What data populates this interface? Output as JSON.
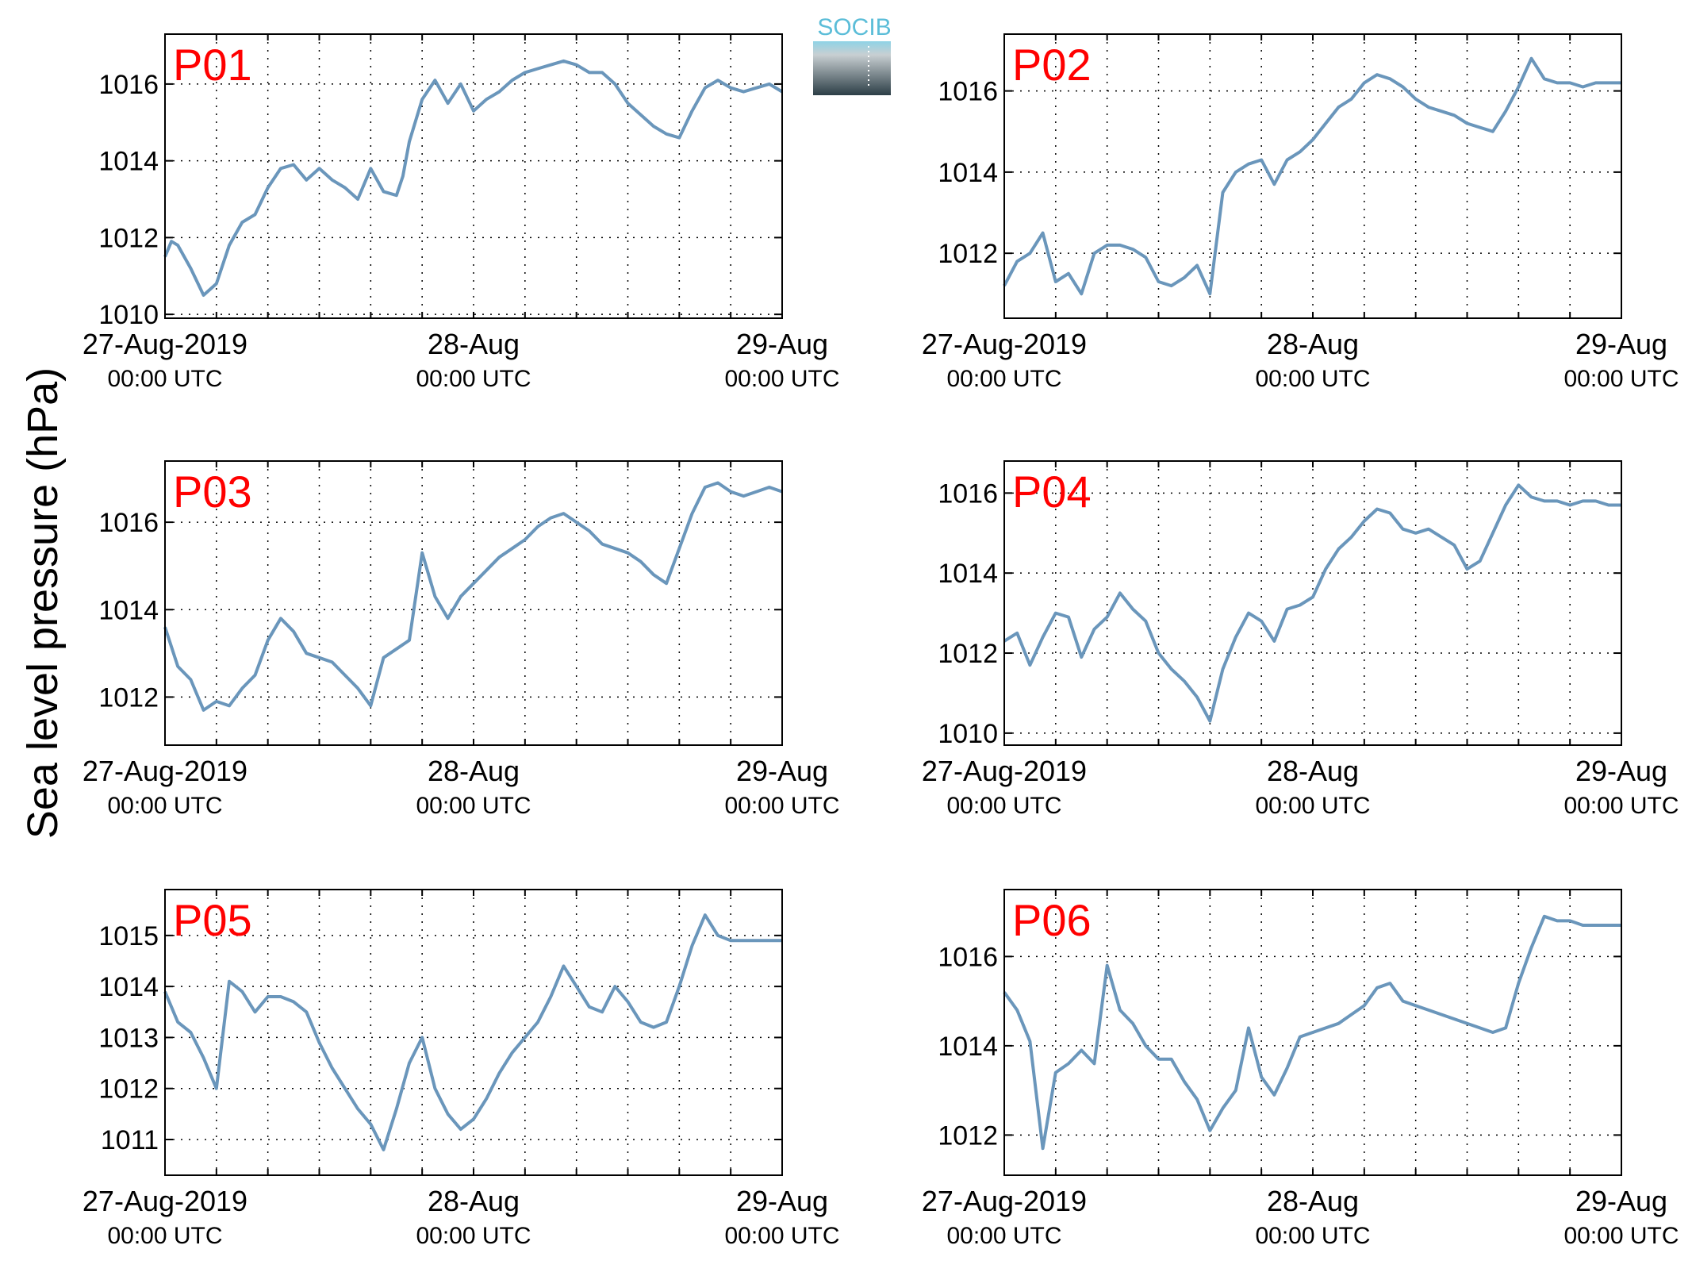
{
  "figure": {
    "ylabel": "Sea level pressure (hPa)",
    "logo_text": "SOCIB"
  },
  "colors": {
    "line": "#6a96bb",
    "label": "#ff0000",
    "logo_top": "#5bbdd8",
    "logo_bottom": "#2c3e46"
  },
  "chart_data": [
    {
      "type": "line",
      "name": "P01",
      "ylim": [
        1009.9,
        1017.3
      ],
      "yticks": [
        1010,
        1012,
        1014,
        1016
      ],
      "xlim": [
        0,
        48
      ],
      "xticks": [
        {
          "date": "27-Aug-2019",
          "time": "00:00 UTC"
        },
        {
          "date": "28-Aug",
          "time": "00:00 UTC"
        },
        {
          "date": "29-Aug",
          "time": "00:00 UTC"
        }
      ],
      "x": [
        0,
        0.5,
        1,
        2,
        3,
        4,
        5,
        6,
        7,
        8,
        9,
        10,
        11,
        12,
        13,
        14,
        15,
        16,
        17,
        18,
        18.5,
        19,
        20,
        21,
        22,
        23,
        24,
        25,
        26,
        27,
        28,
        29,
        30,
        31,
        32,
        33,
        34,
        35,
        36,
        37,
        38,
        39,
        40,
        41,
        42,
        43,
        44,
        45,
        46,
        47,
        48
      ],
      "y": [
        1011.5,
        1011.9,
        1011.8,
        1011.2,
        1010.5,
        1010.8,
        1011.8,
        1012.4,
        1012.6,
        1013.3,
        1013.8,
        1013.9,
        1013.5,
        1013.8,
        1013.5,
        1013.3,
        1013.0,
        1013.8,
        1013.2,
        1013.1,
        1013.6,
        1014.5,
        1015.6,
        1016.1,
        1015.5,
        1016.0,
        1015.3,
        1015.6,
        1015.8,
        1016.1,
        1016.3,
        1016.4,
        1016.5,
        1016.6,
        1016.5,
        1016.3,
        1016.3,
        1016.0,
        1015.5,
        1015.2,
        1014.9,
        1014.7,
        1014.6,
        1015.3,
        1015.9,
        1016.1,
        1015.9,
        1015.8,
        1015.9,
        1016.0,
        1015.8
      ]
    },
    {
      "type": "line",
      "name": "P02",
      "ylim": [
        1010.4,
        1017.4
      ],
      "yticks": [
        1012,
        1014,
        1016
      ],
      "xlim": [
        0,
        48
      ],
      "xticks": [
        {
          "date": "27-Aug-2019",
          "time": "00:00 UTC"
        },
        {
          "date": "28-Aug",
          "time": "00:00 UTC"
        },
        {
          "date": "29-Aug",
          "time": "00:00 UTC"
        }
      ],
      "x": [
        0,
        1,
        2,
        3,
        4,
        5,
        6,
        7,
        8,
        9,
        10,
        11,
        12,
        13,
        14,
        15,
        16,
        17,
        18,
        19,
        20,
        21,
        22,
        23,
        24,
        25,
        26,
        27,
        28,
        29,
        30,
        31,
        32,
        33,
        34,
        35,
        36,
        37,
        38,
        39,
        40,
        41,
        42,
        43,
        44,
        45,
        46,
        47,
        48
      ],
      "y": [
        1011.2,
        1011.8,
        1012.0,
        1012.5,
        1011.3,
        1011.5,
        1011.0,
        1012.0,
        1012.2,
        1012.2,
        1012.1,
        1011.9,
        1011.3,
        1011.2,
        1011.4,
        1011.7,
        1011.0,
        1013.5,
        1014.0,
        1014.2,
        1014.3,
        1013.7,
        1014.3,
        1014.5,
        1014.8,
        1015.2,
        1015.6,
        1015.8,
        1016.2,
        1016.4,
        1016.3,
        1016.1,
        1015.8,
        1015.6,
        1015.5,
        1015.4,
        1015.2,
        1015.1,
        1015.0,
        1015.5,
        1016.1,
        1016.8,
        1016.3,
        1016.2,
        1016.2,
        1016.1,
        1016.2,
        1016.2,
        1016.2
      ]
    },
    {
      "type": "line",
      "name": "P03",
      "ylim": [
        1010.9,
        1017.4
      ],
      "yticks": [
        1012,
        1014,
        1016
      ],
      "xlim": [
        0,
        48
      ],
      "xticks": [
        {
          "date": "27-Aug-2019",
          "time": "00:00 UTC"
        },
        {
          "date": "28-Aug",
          "time": "00:00 UTC"
        },
        {
          "date": "29-Aug",
          "time": "00:00 UTC"
        }
      ],
      "x": [
        0,
        1,
        2,
        3,
        4,
        5,
        6,
        7,
        8,
        9,
        10,
        11,
        12,
        13,
        14,
        15,
        16,
        17,
        18,
        19,
        20,
        21,
        22,
        23,
        24,
        25,
        26,
        27,
        28,
        29,
        30,
        31,
        32,
        33,
        34,
        35,
        36,
        37,
        38,
        39,
        40,
        41,
        42,
        43,
        44,
        45,
        46,
        47,
        48
      ],
      "y": [
        1013.6,
        1012.7,
        1012.4,
        1011.7,
        1011.9,
        1011.8,
        1012.2,
        1012.5,
        1013.3,
        1013.8,
        1013.5,
        1013.0,
        1012.9,
        1012.8,
        1012.5,
        1012.2,
        1011.8,
        1012.9,
        1013.1,
        1013.3,
        1015.3,
        1014.3,
        1013.8,
        1014.3,
        1014.6,
        1014.9,
        1015.2,
        1015.4,
        1015.6,
        1015.9,
        1016.1,
        1016.2,
        1016.0,
        1015.8,
        1015.5,
        1015.4,
        1015.3,
        1015.1,
        1014.8,
        1014.6,
        1015.4,
        1016.2,
        1016.8,
        1016.9,
        1016.7,
        1016.6,
        1016.7,
        1016.8,
        1016.7
      ]
    },
    {
      "type": "line",
      "name": "P04",
      "ylim": [
        1009.7,
        1016.8
      ],
      "yticks": [
        1010,
        1012,
        1014,
        1016
      ],
      "xlim": [
        0,
        48
      ],
      "xticks": [
        {
          "date": "27-Aug-2019",
          "time": "00:00 UTC"
        },
        {
          "date": "28-Aug",
          "time": "00:00 UTC"
        },
        {
          "date": "29-Aug",
          "time": "00:00 UTC"
        }
      ],
      "x": [
        0,
        1,
        2,
        3,
        4,
        5,
        6,
        7,
        8,
        9,
        10,
        11,
        12,
        13,
        14,
        15,
        16,
        17,
        18,
        19,
        20,
        21,
        22,
        23,
        24,
        25,
        26,
        27,
        28,
        29,
        30,
        31,
        32,
        33,
        34,
        35,
        36,
        37,
        38,
        39,
        40,
        41,
        42,
        43,
        44,
        45,
        46,
        47,
        48
      ],
      "y": [
        1012.3,
        1012.5,
        1011.7,
        1012.4,
        1013.0,
        1012.9,
        1011.9,
        1012.6,
        1012.9,
        1013.5,
        1013.1,
        1012.8,
        1012.0,
        1011.6,
        1011.3,
        1010.9,
        1010.3,
        1011.6,
        1012.4,
        1013.0,
        1012.8,
        1012.3,
        1013.1,
        1013.2,
        1013.4,
        1014.1,
        1014.6,
        1014.9,
        1015.3,
        1015.6,
        1015.5,
        1015.1,
        1015.0,
        1015.1,
        1014.9,
        1014.7,
        1014.1,
        1014.3,
        1015.0,
        1015.7,
        1016.2,
        1015.9,
        1015.8,
        1015.8,
        1015.7,
        1015.8,
        1015.8,
        1015.7,
        1015.7
      ]
    },
    {
      "type": "line",
      "name": "P05",
      "ylim": [
        1010.3,
        1015.9
      ],
      "yticks": [
        1011,
        1012,
        1013,
        1014,
        1015
      ],
      "xlim": [
        0,
        48
      ],
      "xticks": [
        {
          "date": "27-Aug-2019",
          "time": "00:00 UTC"
        },
        {
          "date": "28-Aug",
          "time": "00:00 UTC"
        },
        {
          "date": "29-Aug",
          "time": "00:00 UTC"
        }
      ],
      "x": [
        0,
        1,
        2,
        3,
        4,
        5,
        6,
        7,
        8,
        9,
        10,
        11,
        12,
        13,
        14,
        15,
        16,
        17,
        18,
        19,
        20,
        21,
        22,
        23,
        24,
        25,
        26,
        27,
        28,
        29,
        30,
        31,
        32,
        33,
        34,
        35,
        36,
        37,
        38,
        39,
        40,
        41,
        42,
        43,
        44,
        45,
        46,
        47,
        48
      ],
      "y": [
        1013.9,
        1013.3,
        1013.1,
        1012.6,
        1012.0,
        1014.1,
        1013.9,
        1013.5,
        1013.8,
        1013.8,
        1013.7,
        1013.5,
        1012.9,
        1012.4,
        1012.0,
        1011.6,
        1011.3,
        1010.8,
        1011.6,
        1012.5,
        1013.0,
        1012.0,
        1011.5,
        1011.2,
        1011.4,
        1011.8,
        1012.3,
        1012.7,
        1013.0,
        1013.3,
        1013.8,
        1014.4,
        1014.0,
        1013.6,
        1013.5,
        1014.0,
        1013.7,
        1013.3,
        1013.2,
        1013.3,
        1014.0,
        1014.8,
        1015.4,
        1015.0,
        1014.9,
        1014.9,
        1014.9,
        1014.9,
        1014.9
      ]
    },
    {
      "type": "line",
      "name": "P06",
      "ylim": [
        1011.1,
        1017.5
      ],
      "yticks": [
        1012,
        1014,
        1016
      ],
      "xlim": [
        0,
        48
      ],
      "xticks": [
        {
          "date": "27-Aug-2019",
          "time": "00:00 UTC"
        },
        {
          "date": "28-Aug",
          "time": "00:00 UTC"
        },
        {
          "date": "29-Aug",
          "time": "00:00 UTC"
        }
      ],
      "x": [
        0,
        1,
        2,
        3,
        4,
        5,
        6,
        7,
        8,
        9,
        10,
        11,
        12,
        13,
        14,
        15,
        16,
        17,
        18,
        19,
        20,
        21,
        22,
        23,
        24,
        25,
        26,
        27,
        28,
        29,
        30,
        31,
        32,
        33,
        34,
        35,
        36,
        37,
        38,
        39,
        40,
        41,
        42,
        43,
        44,
        45,
        46,
        47,
        48
      ],
      "y": [
        1015.2,
        1014.8,
        1014.1,
        1011.7,
        1013.4,
        1013.6,
        1013.9,
        1013.6,
        1015.8,
        1014.8,
        1014.5,
        1014.0,
        1013.7,
        1013.7,
        1013.2,
        1012.8,
        1012.1,
        1012.6,
        1013.0,
        1014.4,
        1013.3,
        1012.9,
        1013.5,
        1014.2,
        1014.3,
        1014.4,
        1014.5,
        1014.7,
        1014.9,
        1015.3,
        1015.4,
        1015.0,
        1014.9,
        1014.8,
        1014.7,
        1014.6,
        1014.5,
        1014.4,
        1014.3,
        1014.4,
        1015.4,
        1016.2,
        1016.9,
        1016.8,
        1016.8,
        1016.7,
        1016.7,
        1016.7,
        1016.7
      ]
    }
  ]
}
